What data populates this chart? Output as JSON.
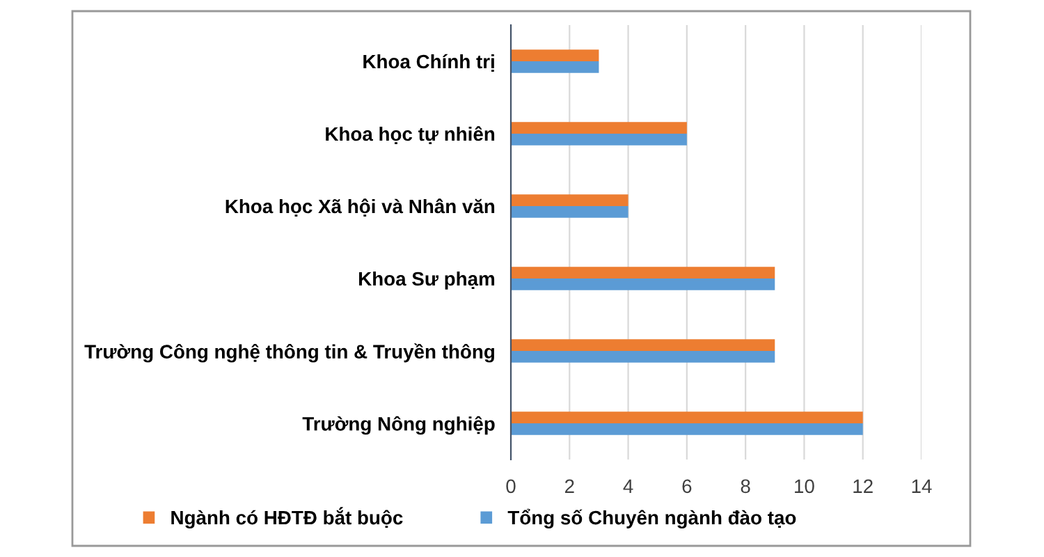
{
  "chart_data": {
    "type": "bar",
    "orientation": "horizontal",
    "categories": [
      "Khoa Chính trị",
      "Khoa học tự nhiên",
      "Khoa học Xã hội và Nhân văn",
      "Khoa Sư phạm",
      "Trường Công nghệ thông tin & Truyền thông",
      "Trường Nông nghiệp"
    ],
    "series": [
      {
        "name": "Ngành có HĐTĐ bắt buộc",
        "color": "#ed7d31",
        "values": [
          3,
          6,
          4,
          9,
          9,
          12
        ]
      },
      {
        "name": "Tổng số Chuyên ngành đào tạo",
        "color": "#5b9bd5",
        "values": [
          3,
          6,
          4,
          9,
          9,
          12
        ]
      }
    ],
    "xlim": [
      0,
      14
    ],
    "xticks": [
      0,
      2,
      4,
      6,
      8,
      10,
      12,
      14
    ],
    "grid": "x",
    "legend": "bottom"
  }
}
